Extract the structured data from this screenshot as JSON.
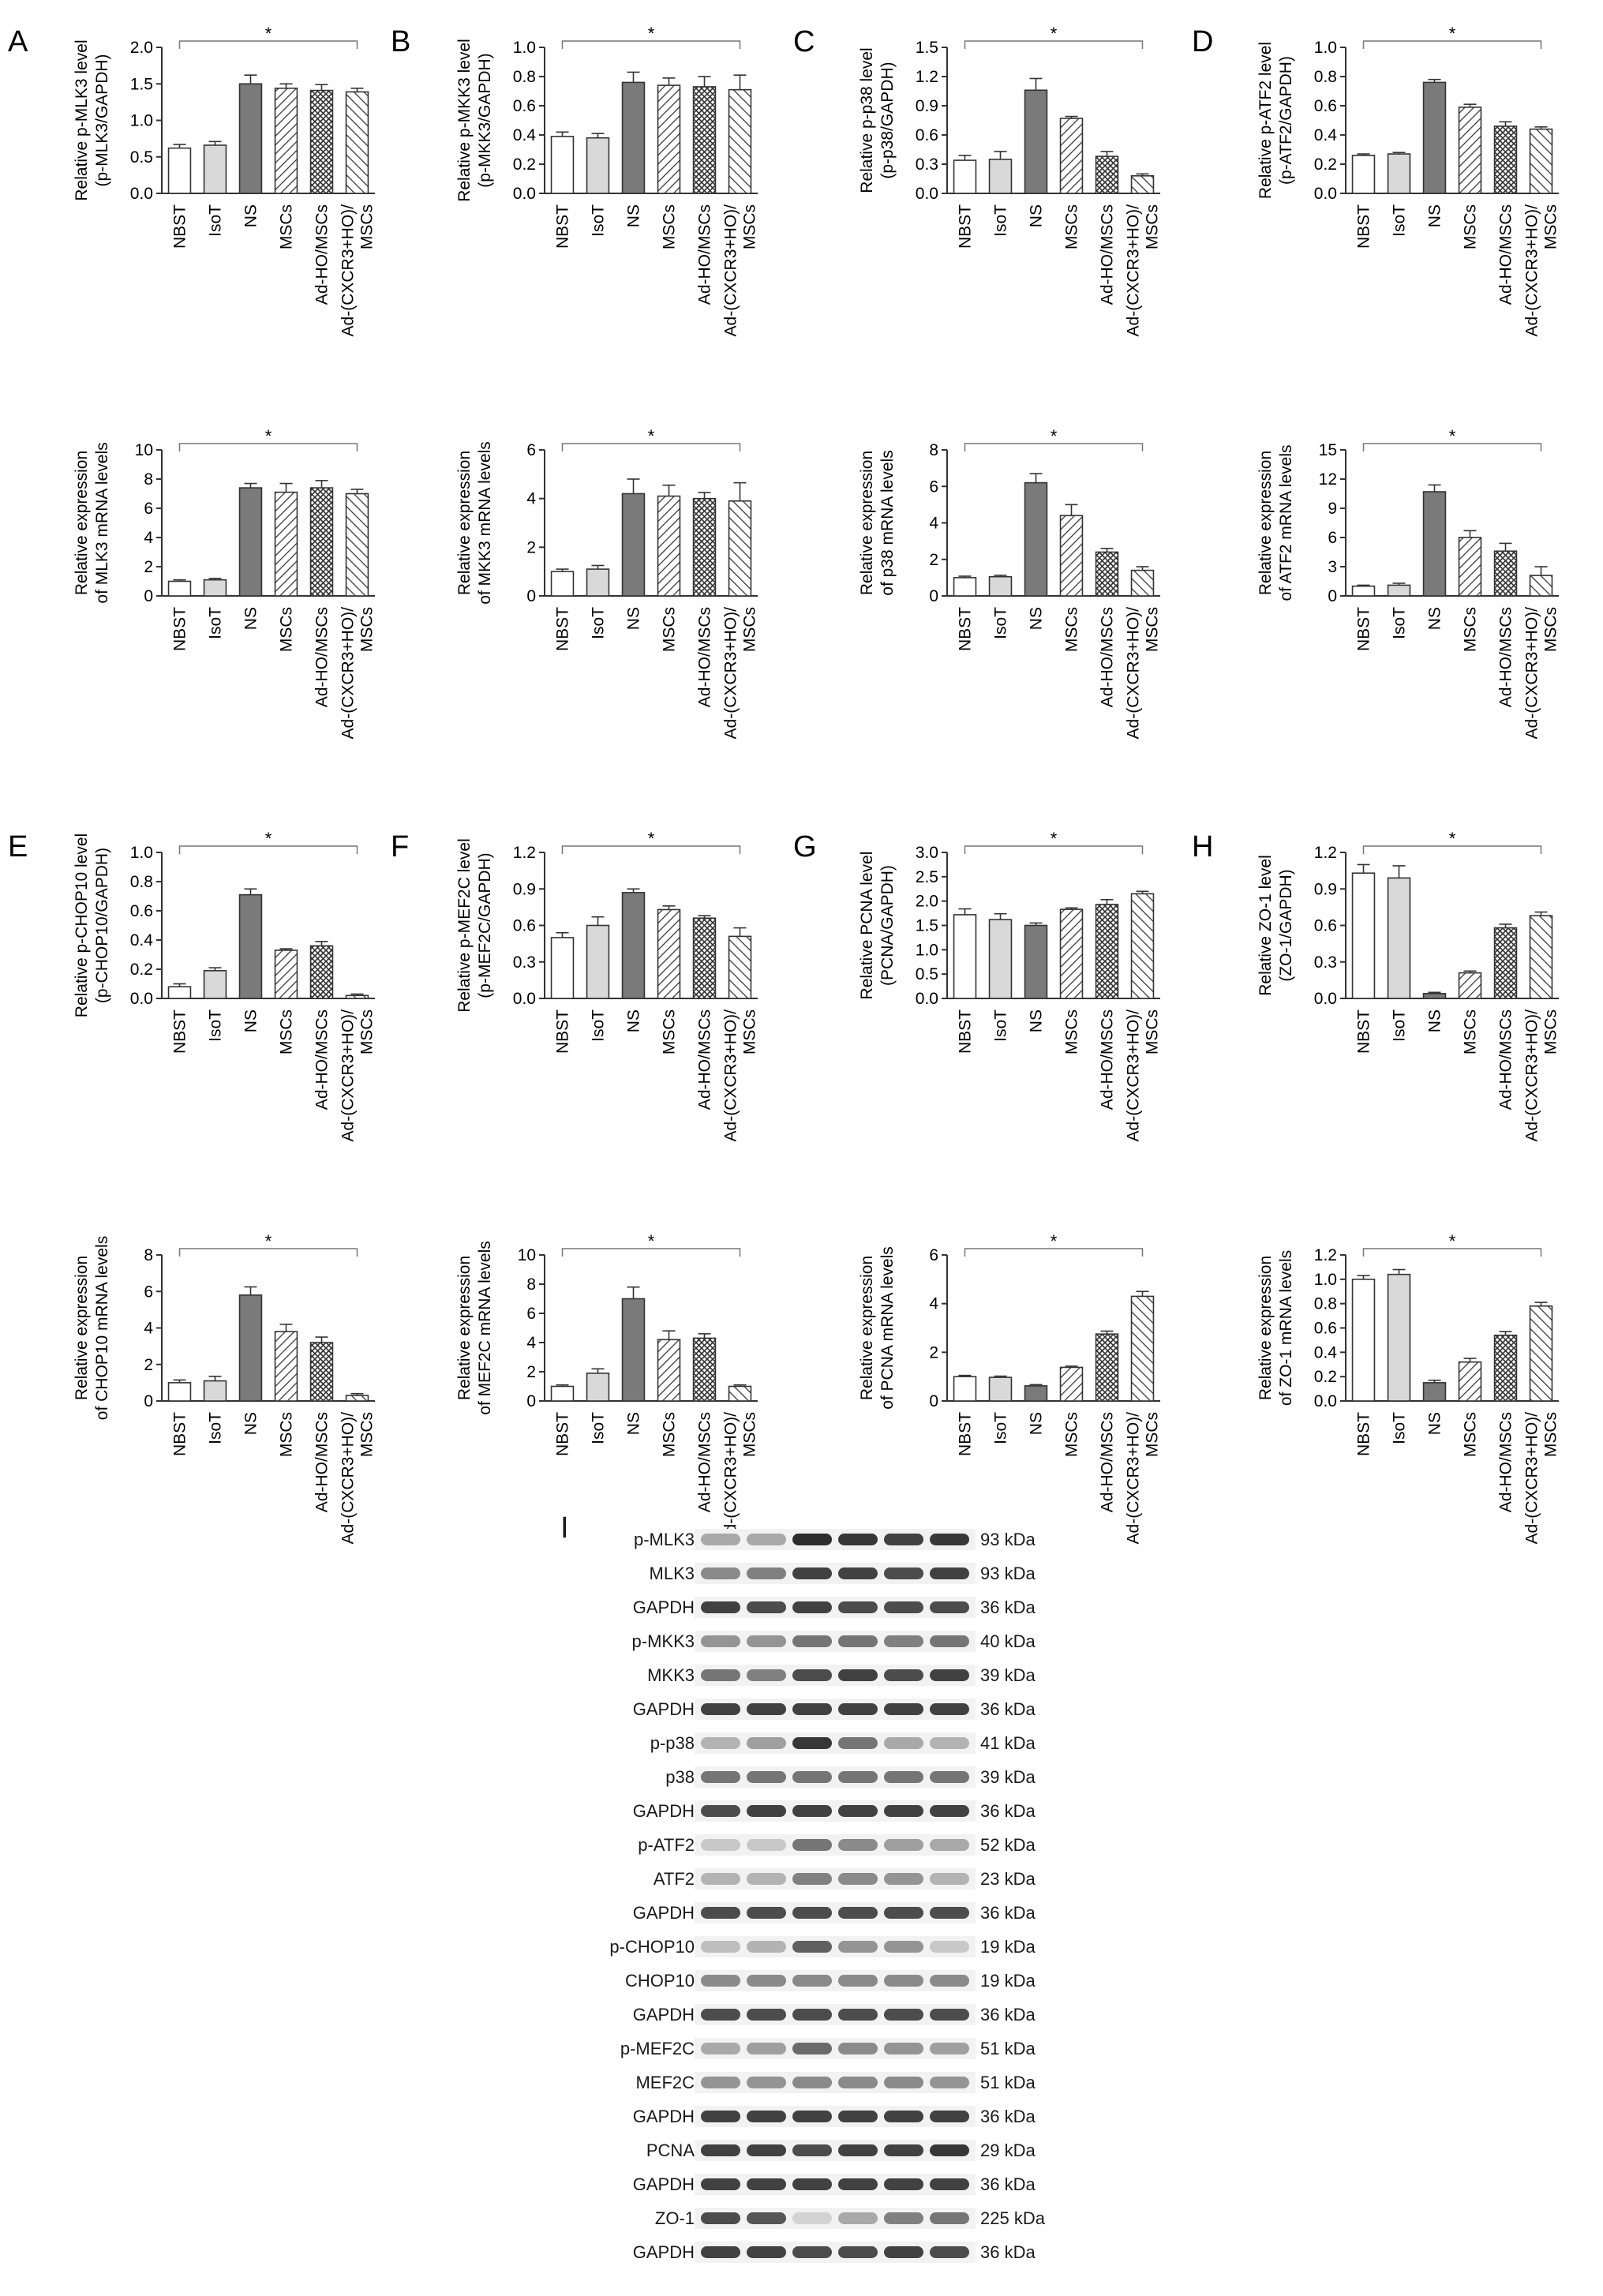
{
  "groups": [
    "NBST",
    "IsoT",
    "NS",
    "MSCs",
    "Ad-HO/MSCs",
    "Ad-(CXCR3+HO)/\nMSCs"
  ],
  "patterns": [
    "white",
    "lightgray",
    "darkgray",
    "hatch",
    "crosshatch",
    "hatch2"
  ],
  "colors": {
    "white": "#ffffff",
    "lightgray": "#d9d9d9",
    "darkgray": "#7a7a7a",
    "stroke": "#333333"
  },
  "chart_data": [
    {
      "panel": "A",
      "type": "bar",
      "ylabel": "Relative p-MLK3 level\n(p-MLK3/GAPDH)",
      "ylim": [
        0,
        2.0
      ],
      "ticks": [
        "0.0",
        "0.5",
        "1.0",
        "1.5",
        "2.0"
      ],
      "values": [
        0.62,
        0.66,
        1.5,
        1.44,
        1.41,
        1.39
      ],
      "errors": [
        0.05,
        0.05,
        0.12,
        0.06,
        0.08,
        0.05
      ],
      "sig": "*"
    },
    {
      "panel": "A2",
      "type": "bar",
      "ylabel": "Relative expression\nof MLK3 mRNA levels",
      "ylim": [
        0,
        10
      ],
      "ticks": [
        "0",
        "2",
        "4",
        "6",
        "8",
        "10"
      ],
      "values": [
        1.0,
        1.1,
        7.4,
        7.1,
        7.4,
        7.0
      ],
      "errors": [
        0.1,
        0.1,
        0.3,
        0.6,
        0.5,
        0.3
      ],
      "sig": "*"
    },
    {
      "panel": "B",
      "type": "bar",
      "ylabel": "Relative p-MKK3 level\n(p-MKK3/GAPDH)",
      "ylim": [
        0,
        1.0
      ],
      "ticks": [
        "0.0",
        "0.2",
        "0.4",
        "0.6",
        "0.8",
        "1.0"
      ],
      "values": [
        0.39,
        0.38,
        0.76,
        0.74,
        0.73,
        0.71
      ],
      "errors": [
        0.03,
        0.03,
        0.07,
        0.05,
        0.07,
        0.1
      ],
      "sig": "*"
    },
    {
      "panel": "B2",
      "type": "bar",
      "ylabel": "Relative expression\nof MKK3 mRNA levels",
      "ylim": [
        0,
        6
      ],
      "ticks": [
        "0",
        "2",
        "4",
        "6"
      ],
      "values": [
        1.0,
        1.1,
        4.2,
        4.1,
        4.0,
        3.9
      ],
      "errors": [
        0.1,
        0.15,
        0.6,
        0.45,
        0.25,
        0.75
      ],
      "sig": "*"
    },
    {
      "panel": "C",
      "type": "bar",
      "ylabel": "Relative p-p38 level\n(p-p38/GAPDH)",
      "ylim": [
        0,
        1.5
      ],
      "ticks": [
        "0.0",
        "0.3",
        "0.6",
        "0.9",
        "1.2",
        "1.5"
      ],
      "values": [
        0.34,
        0.35,
        1.06,
        0.77,
        0.38,
        0.18
      ],
      "errors": [
        0.05,
        0.08,
        0.12,
        0.02,
        0.05,
        0.02
      ],
      "sig": "*"
    },
    {
      "panel": "C2",
      "type": "bar",
      "ylabel": "Relative expression\nof p38 mRNA levels",
      "ylim": [
        0,
        8
      ],
      "ticks": [
        "0",
        "2",
        "4",
        "6",
        "8"
      ],
      "values": [
        1.0,
        1.05,
        6.2,
        4.4,
        2.4,
        1.4
      ],
      "errors": [
        0.08,
        0.08,
        0.5,
        0.6,
        0.2,
        0.2
      ],
      "sig": "*"
    },
    {
      "panel": "D",
      "type": "bar",
      "ylabel": "Relative p-ATF2 level\n(p-ATF2/GAPDH)",
      "ylim": [
        0,
        1.0
      ],
      "ticks": [
        "0.0",
        "0.2",
        "0.4",
        "0.6",
        "0.8",
        "1.0"
      ],
      "values": [
        0.26,
        0.27,
        0.76,
        0.59,
        0.46,
        0.44
      ],
      "errors": [
        0.01,
        0.01,
        0.02,
        0.02,
        0.03,
        0.015
      ],
      "sig": "*"
    },
    {
      "panel": "D2",
      "type": "bar",
      "ylabel": "Relative expression\nof ATF2 mRNA levels",
      "ylim": [
        0,
        15
      ],
      "ticks": [
        "0",
        "3",
        "6",
        "9",
        "12",
        "15"
      ],
      "values": [
        1.0,
        1.1,
        10.7,
        6.0,
        4.6,
        2.1
      ],
      "errors": [
        0.1,
        0.2,
        0.7,
        0.7,
        0.8,
        0.9
      ],
      "sig": "*"
    },
    {
      "panel": "E",
      "type": "bar",
      "ylabel": "Relative p-CHOP10 level\n(p-CHOP10/GAPDH)",
      "ylim": [
        0,
        1.0
      ],
      "ticks": [
        "0.0",
        "0.2",
        "0.4",
        "0.6",
        "0.8",
        "1.0"
      ],
      "values": [
        0.08,
        0.19,
        0.71,
        0.33,
        0.36,
        0.02
      ],
      "errors": [
        0.02,
        0.02,
        0.04,
        0.01,
        0.03,
        0.01
      ],
      "sig": "*"
    },
    {
      "panel": "E2",
      "type": "bar",
      "ylabel": "Relative expression\nof CHOP10 mRNA levels",
      "ylim": [
        0,
        8
      ],
      "ticks": [
        "0",
        "2",
        "4",
        "6",
        "8"
      ],
      "values": [
        1.0,
        1.1,
        5.8,
        3.8,
        3.2,
        0.3
      ],
      "errors": [
        0.15,
        0.25,
        0.45,
        0.4,
        0.3,
        0.1
      ],
      "sig": "*"
    },
    {
      "panel": "F",
      "type": "bar",
      "ylabel": "Relative p-MEF2C level\n(p-MEF2C/GAPDH)",
      "ylim": [
        0,
        1.2
      ],
      "ticks": [
        "0.0",
        "0.3",
        "0.6",
        "0.9",
        "1.2"
      ],
      "values": [
        0.5,
        0.6,
        0.87,
        0.73,
        0.66,
        0.51
      ],
      "errors": [
        0.04,
        0.07,
        0.03,
        0.03,
        0.02,
        0.07
      ],
      "sig": "*"
    },
    {
      "panel": "F2",
      "type": "bar",
      "ylabel": "Relative expression\nof MEF2C mRNA levels",
      "ylim": [
        0,
        10
      ],
      "ticks": [
        "0",
        "2",
        "4",
        "6",
        "8",
        "10"
      ],
      "values": [
        1.0,
        1.9,
        7.0,
        4.2,
        4.3,
        1.0
      ],
      "errors": [
        0.1,
        0.3,
        0.8,
        0.6,
        0.3,
        0.1
      ],
      "sig": "*"
    },
    {
      "panel": "G",
      "type": "bar",
      "ylabel": "Relative PCNA level\n(PCNA/GAPDH)",
      "ylim": [
        0,
        3.0
      ],
      "ticks": [
        "0.0",
        "0.5",
        "1.0",
        "1.5",
        "2.0",
        "2.5",
        "3.0"
      ],
      "values": [
        1.72,
        1.62,
        1.5,
        1.83,
        1.93,
        2.15
      ],
      "errors": [
        0.12,
        0.12,
        0.05,
        0.03,
        0.1,
        0.05
      ],
      "sig": "*"
    },
    {
      "panel": "G2",
      "type": "bar",
      "ylabel": "Relative expression\nof PCNA mRNA levels",
      "ylim": [
        0,
        6
      ],
      "ticks": [
        "0",
        "2",
        "4",
        "6"
      ],
      "values": [
        1.0,
        0.97,
        0.62,
        1.38,
        2.75,
        4.3
      ],
      "errors": [
        0.05,
        0.05,
        0.05,
        0.05,
        0.12,
        0.2
      ],
      "sig": "*"
    },
    {
      "panel": "H",
      "type": "bar",
      "ylabel": "Relative ZO-1 level\n(ZO-1/GAPDH)",
      "ylim": [
        0,
        1.2
      ],
      "ticks": [
        "0.0",
        "0.3",
        "0.6",
        "0.9",
        "1.2"
      ],
      "values": [
        1.03,
        0.99,
        0.04,
        0.21,
        0.58,
        0.68
      ],
      "errors": [
        0.07,
        0.1,
        0.01,
        0.015,
        0.03,
        0.03
      ],
      "sig": "*"
    },
    {
      "panel": "H2",
      "type": "bar",
      "ylabel": "Relative expression\nof ZO-1 mRNA levels",
      "ylim": [
        0,
        1.2
      ],
      "ticks": [
        "0.0",
        "0.2",
        "0.4",
        "0.6",
        "0.8",
        "1.0",
        "1.2"
      ],
      "values": [
        1.0,
        1.04,
        0.15,
        0.32,
        0.54,
        0.78
      ],
      "errors": [
        0.03,
        0.04,
        0.02,
        0.03,
        0.03,
        0.03
      ],
      "sig": "*"
    }
  ],
  "blot": {
    "panel": "I",
    "rows": [
      {
        "label": "p-MLK3",
        "kda": "93 kDa",
        "intensity": [
          0.35,
          0.35,
          0.95,
          0.9,
          0.85,
          0.9
        ]
      },
      {
        "label": "MLK3",
        "kda": "93 kDa",
        "intensity": [
          0.5,
          0.55,
          0.85,
          0.85,
          0.8,
          0.85
        ]
      },
      {
        "label": "GAPDH",
        "kda": "36 kDa",
        "intensity": [
          0.85,
          0.8,
          0.85,
          0.8,
          0.8,
          0.8
        ]
      },
      {
        "label": "p-MKK3",
        "kda": "40 kDa",
        "intensity": [
          0.45,
          0.45,
          0.6,
          0.6,
          0.55,
          0.6
        ]
      },
      {
        "label": "MKK3",
        "kda": "39 kDa",
        "intensity": [
          0.6,
          0.55,
          0.8,
          0.85,
          0.8,
          0.85
        ]
      },
      {
        "label": "GAPDH",
        "kda": "36 kDa",
        "intensity": [
          0.85,
          0.85,
          0.85,
          0.85,
          0.85,
          0.85
        ]
      },
      {
        "label": "p-p38",
        "kda": "41 kDa",
        "intensity": [
          0.3,
          0.4,
          0.9,
          0.6,
          0.35,
          0.3
        ]
      },
      {
        "label": "p38",
        "kda": "39 kDa",
        "intensity": [
          0.6,
          0.6,
          0.6,
          0.6,
          0.6,
          0.6
        ]
      },
      {
        "label": "GAPDH",
        "kda": "36 kDa",
        "intensity": [
          0.8,
          0.85,
          0.85,
          0.85,
          0.85,
          0.85
        ]
      },
      {
        "label": "p-ATF2",
        "kda": "52 kDa",
        "intensity": [
          0.2,
          0.2,
          0.6,
          0.5,
          0.4,
          0.35
        ]
      },
      {
        "label": "ATF2",
        "kda": "23 kDa",
        "intensity": [
          0.3,
          0.3,
          0.55,
          0.5,
          0.45,
          0.3
        ]
      },
      {
        "label": "GAPDH",
        "kda": "36 kDa",
        "intensity": [
          0.8,
          0.8,
          0.8,
          0.8,
          0.8,
          0.8
        ]
      },
      {
        "label": "p-CHOP10",
        "kda": "19 kDa",
        "intensity": [
          0.25,
          0.3,
          0.7,
          0.45,
          0.45,
          0.2
        ]
      },
      {
        "label": "CHOP10",
        "kda": "19 kDa",
        "intensity": [
          0.5,
          0.5,
          0.5,
          0.5,
          0.5,
          0.5
        ]
      },
      {
        "label": "GAPDH",
        "kda": "36 kDa",
        "intensity": [
          0.8,
          0.8,
          0.8,
          0.8,
          0.8,
          0.8
        ]
      },
      {
        "label": "p-MEF2C",
        "kda": "51 kDa",
        "intensity": [
          0.35,
          0.4,
          0.65,
          0.5,
          0.45,
          0.4
        ]
      },
      {
        "label": "MEF2C",
        "kda": "51 kDa",
        "intensity": [
          0.45,
          0.45,
          0.5,
          0.5,
          0.5,
          0.45
        ]
      },
      {
        "label": "GAPDH",
        "kda": "36 kDa",
        "intensity": [
          0.85,
          0.85,
          0.85,
          0.85,
          0.85,
          0.85
        ]
      },
      {
        "label": "PCNA",
        "kda": "29 kDa",
        "intensity": [
          0.85,
          0.85,
          0.8,
          0.85,
          0.85,
          0.9
        ]
      },
      {
        "label": "GAPDH",
        "kda": "36 kDa",
        "intensity": [
          0.85,
          0.85,
          0.85,
          0.85,
          0.85,
          0.85
        ]
      },
      {
        "label": "ZO-1",
        "kda": "225 kDa",
        "intensity": [
          0.8,
          0.75,
          0.15,
          0.35,
          0.55,
          0.6
        ]
      },
      {
        "label": "GAPDH",
        "kda": "36 kDa",
        "intensity": [
          0.85,
          0.85,
          0.8,
          0.8,
          0.85,
          0.8
        ]
      }
    ]
  }
}
